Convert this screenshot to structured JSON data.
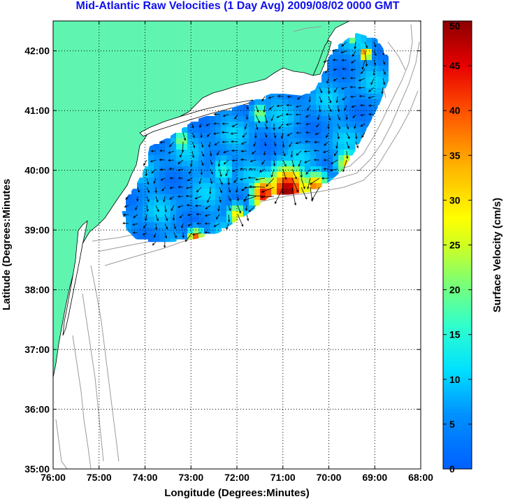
{
  "title": "Mid-Atlantic Raw Velocities (1 Day Avg) 2009/08/02 0000 GMT",
  "colors": {
    "land": "#5ff5b0",
    "background": "#ffffff",
    "bathymetry": "#9a9a9a",
    "grid": "#000000",
    "title": "#1010ee"
  },
  "chart_data": {
    "type": "heatmap",
    "title": "Mid-Atlantic Raw Velocities (1 Day Avg) 2009/08/02 0000 GMT",
    "xlabel": "Longitude (Degrees:Minutes)",
    "ylabel": "Latitude (Degrees:Minutes",
    "xlim": [
      -76,
      -68
    ],
    "ylim": [
      35,
      42.5
    ],
    "x_ticks": [
      -76,
      -75,
      -74,
      -73,
      -72,
      -71,
      -70,
      -69,
      -68
    ],
    "x_tick_labels": [
      "76:00",
      "75:00",
      "74:00",
      "73:00",
      "72:00",
      "71:00",
      "70:00",
      "69:00",
      "68:00"
    ],
    "y_ticks": [
      35,
      36,
      37,
      38,
      39,
      40,
      41,
      42
    ],
    "y_tick_labels": [
      "35:00",
      "36:00",
      "37:00",
      "38:00",
      "39:00",
      "40:00",
      "41:00",
      "42:00"
    ],
    "grid": "dotted",
    "colorbar": {
      "label": "Surface Velocity (cm/s)",
      "min": 0,
      "max": 50,
      "ticks": [
        0,
        5,
        10,
        15,
        20,
        25,
        30,
        35,
        40,
        45,
        50
      ],
      "tick_labels": [
        "0",
        "5",
        "10",
        "15",
        "20",
        "25",
        "30",
        "35",
        "40",
        "45",
        "50"
      ],
      "colormap": "jet"
    },
    "field_outline_lonlat": [
      [
        -74.5,
        39.3
      ],
      [
        -74.4,
        39.0
      ],
      [
        -74.2,
        38.85
      ],
      [
        -73.9,
        38.8
      ],
      [
        -73.4,
        38.8
      ],
      [
        -72.9,
        38.85
      ],
      [
        -72.4,
        38.95
      ],
      [
        -72.0,
        39.15
      ],
      [
        -71.7,
        39.3
      ],
      [
        -71.3,
        39.55
      ],
      [
        -70.8,
        39.6
      ],
      [
        -70.3,
        39.65
      ],
      [
        -70.0,
        39.8
      ],
      [
        -69.7,
        40.0
      ],
      [
        -69.4,
        40.35
      ],
      [
        -69.1,
        40.8
      ],
      [
        -68.9,
        41.1
      ],
      [
        -68.7,
        41.5
      ],
      [
        -68.7,
        41.9
      ],
      [
        -68.95,
        42.2
      ],
      [
        -69.4,
        42.3
      ],
      [
        -69.8,
        42.1
      ],
      [
        -70.0,
        41.9
      ],
      [
        -70.15,
        41.6
      ],
      [
        -70.3,
        41.35
      ],
      [
        -70.6,
        41.25
      ],
      [
        -71.2,
        41.3
      ],
      [
        -71.9,
        41.1
      ],
      [
        -72.5,
        40.95
      ],
      [
        -72.9,
        40.85
      ],
      [
        -73.5,
        40.55
      ],
      [
        -73.9,
        40.4
      ],
      [
        -74.0,
        40.05
      ],
      [
        -74.2,
        39.75
      ],
      [
        -74.4,
        39.55
      ]
    ],
    "speed_hotspots": [
      {
        "lon": -70.9,
        "lat": 39.65,
        "speed": 50,
        "radius_deg": 0.45
      },
      {
        "lon": -71.4,
        "lat": 39.6,
        "speed": 45,
        "radius_deg": 0.3
      },
      {
        "lon": -70.3,
        "lat": 39.7,
        "speed": 38,
        "radius_deg": 0.3
      },
      {
        "lon": -69.6,
        "lat": 40.1,
        "speed": 30,
        "radius_deg": 0.25
      },
      {
        "lon": -72.9,
        "lat": 38.85,
        "speed": 42,
        "radius_deg": 0.18
      },
      {
        "lon": -69.2,
        "lat": 41.95,
        "speed": 45,
        "radius_deg": 0.12
      },
      {
        "lon": -72.0,
        "lat": 39.25,
        "speed": 30,
        "radius_deg": 0.2
      },
      {
        "lon": -69.5,
        "lat": 42.25,
        "speed": 32,
        "radius_deg": 0.12
      },
      {
        "lon": -73.2,
        "lat": 40.5,
        "speed": 22,
        "radius_deg": 0.2
      },
      {
        "lon": -71.5,
        "lat": 40.95,
        "speed": 22,
        "radius_deg": 0.2
      },
      {
        "lon": -72.3,
        "lat": 40.0,
        "speed": 14,
        "radius_deg": 0.3
      }
    ],
    "background_speed": 6,
    "mean_flow_direction_deg": 215
  }
}
